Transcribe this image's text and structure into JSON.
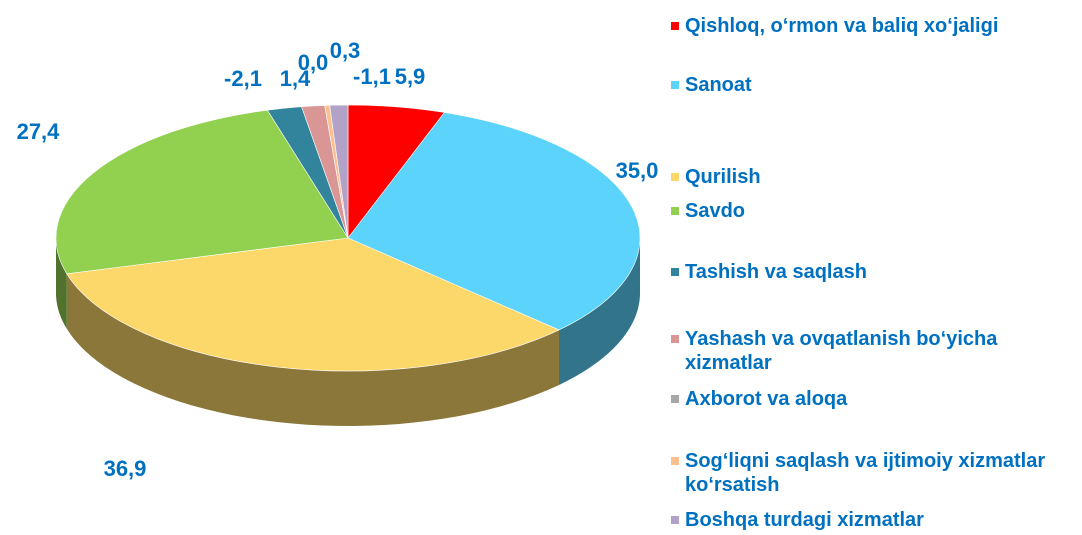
{
  "chart_data": {
    "type": "pie",
    "series": [
      {
        "name": "Qishloq, o‘rmon va baliq xo‘jaligi",
        "color": "#ff0000"
      },
      {
        "name": "Sanoat",
        "color": "#5bd3fa"
      },
      {
        "name": "Qurilish",
        "color": "#fcd86a"
      },
      {
        "name": "Savdo",
        "color": "#92d050"
      },
      {
        "name": "Tashish va saqlash",
        "color": "#31849b"
      },
      {
        "name": "Yashash va ovqatlanish bo‘yicha xizmatlar",
        "color": "#d99694"
      },
      {
        "name": "Axborot va aloqa",
        "color": "#a6a6a6"
      },
      {
        "name": "Sog‘liqni saqlash va ijtimoiy xizmatlar ko‘rsatish",
        "color": "#fac090"
      },
      {
        "name": "Boshqa turdagi xizmatlar",
        "color": "#b3a2c7"
      }
    ],
    "values": [
      5.9,
      35.0,
      36.9,
      27.4,
      -2.1,
      1.4,
      0.0,
      0.3,
      -1.1
    ],
    "value_labels": [
      "5,9",
      "35,0",
      "36,9",
      "27,4",
      "-2,1",
      "1,4",
      "0,0",
      "0,3",
      "-1,1"
    ]
  }
}
